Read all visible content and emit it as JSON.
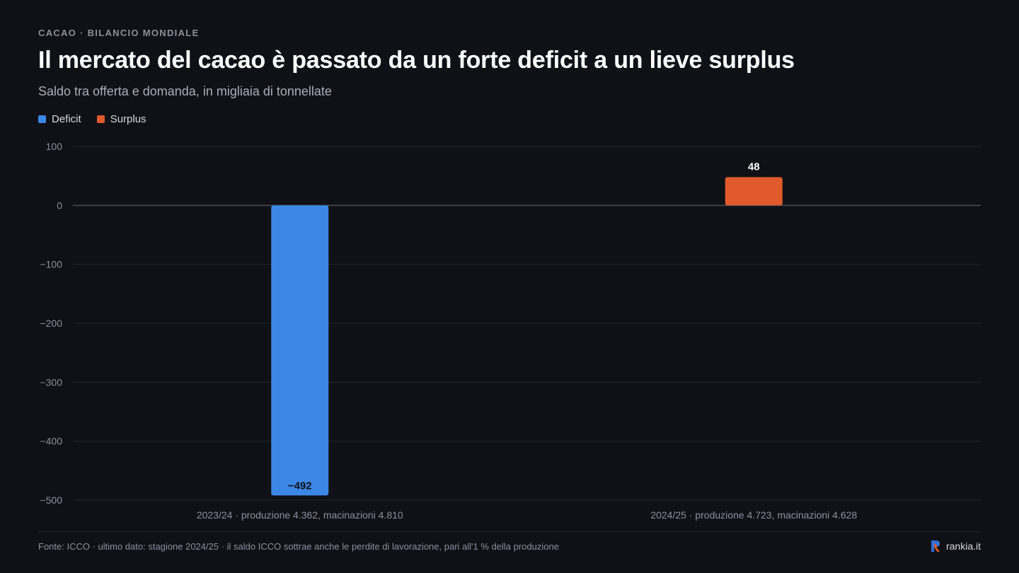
{
  "header": {
    "kicker": "CACAO · BILANCIO MONDIALE",
    "title": "Il mercato del cacao è passato da un forte deficit a un lieve surplus",
    "subtitle": "Saldo tra offerta e domanda, in migliaia di tonnellate"
  },
  "legend": [
    {
      "label": "Deficit",
      "color": "#3b87e6"
    },
    {
      "label": "Surplus",
      "color": "#e05a2b"
    }
  ],
  "chart_data": {
    "type": "bar",
    "categories": [
      "2023/24 · produzione 4.362, macinazioni 4.810",
      "2024/25 · produzione 4.723, macinazioni 4.628"
    ],
    "values": [
      -492,
      48
    ],
    "value_labels": [
      "−492",
      "48"
    ],
    "colors": [
      "#3b87e6",
      "#e05a2b"
    ],
    "ylim": [
      -500,
      100
    ],
    "yticks": [
      100,
      0,
      -100,
      -200,
      -300,
      -400,
      -500
    ],
    "ytick_labels": [
      "100",
      "0",
      "−100",
      "−200",
      "−300",
      "−400",
      "−500"
    ],
    "grid": true,
    "legend_position": "top-left"
  },
  "footer": {
    "note": "Fonte: ICCO · ultimo dato: stagione 2024/25 · il saldo ICCO sottrae anche le perdite di lavorazione, pari all'1 % della produzione",
    "brand": "rankia.it",
    "brand_icon": "rankia-logo-icon"
  }
}
